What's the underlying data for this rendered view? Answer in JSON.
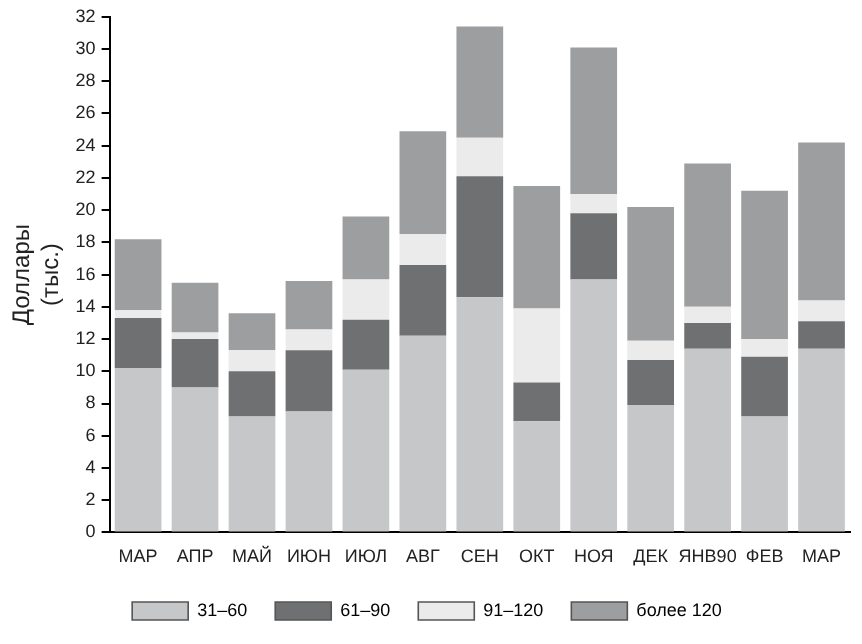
{
  "chart_data": {
    "type": "bar",
    "stacked": true,
    "ylabel": "Доллары\n(тыс.)",
    "categories": [
      "МАР",
      "АПР",
      "МАЙ",
      "ИЮН",
      "ИЮЛ",
      "АВГ",
      "СЕН",
      "ОКТ",
      "НОЯ",
      "ДЕК",
      "ЯНВ90",
      "ФЕВ",
      "МАР"
    ],
    "series": [
      {
        "name": "31–60",
        "color": "#c6c7c9",
        "values": [
          10.2,
          9.0,
          7.2,
          7.5,
          10.1,
          12.2,
          14.6,
          6.9,
          15.7,
          7.9,
          11.4,
          7.2,
          11.4
        ]
      },
      {
        "name": "61–90",
        "color": "#6f7072",
        "values": [
          3.1,
          3.0,
          2.8,
          3.8,
          3.1,
          4.4,
          7.5,
          2.4,
          4.1,
          2.8,
          1.6,
          3.7,
          1.7
        ]
      },
      {
        "name": "91–120",
        "color": "#ebebeb",
        "values": [
          0.5,
          0.4,
          1.3,
          1.3,
          2.5,
          1.9,
          2.4,
          4.6,
          1.2,
          1.2,
          1.0,
          1.1,
          1.3
        ]
      },
      {
        "name": "более 120",
        "color": "#9d9e9f",
        "values": [
          4.4,
          3.1,
          2.3,
          3.0,
          3.9,
          6.4,
          6.9,
          7.6,
          9.1,
          8.3,
          8.9,
          9.2,
          9.8
        ]
      }
    ],
    "ylim": [
      0,
      32
    ],
    "yticks": [
      0,
      2,
      4,
      6,
      8,
      10,
      12,
      14,
      16,
      18,
      20,
      22,
      24,
      26,
      28,
      30,
      32
    ],
    "grid": false,
    "legend": "bottom"
  }
}
